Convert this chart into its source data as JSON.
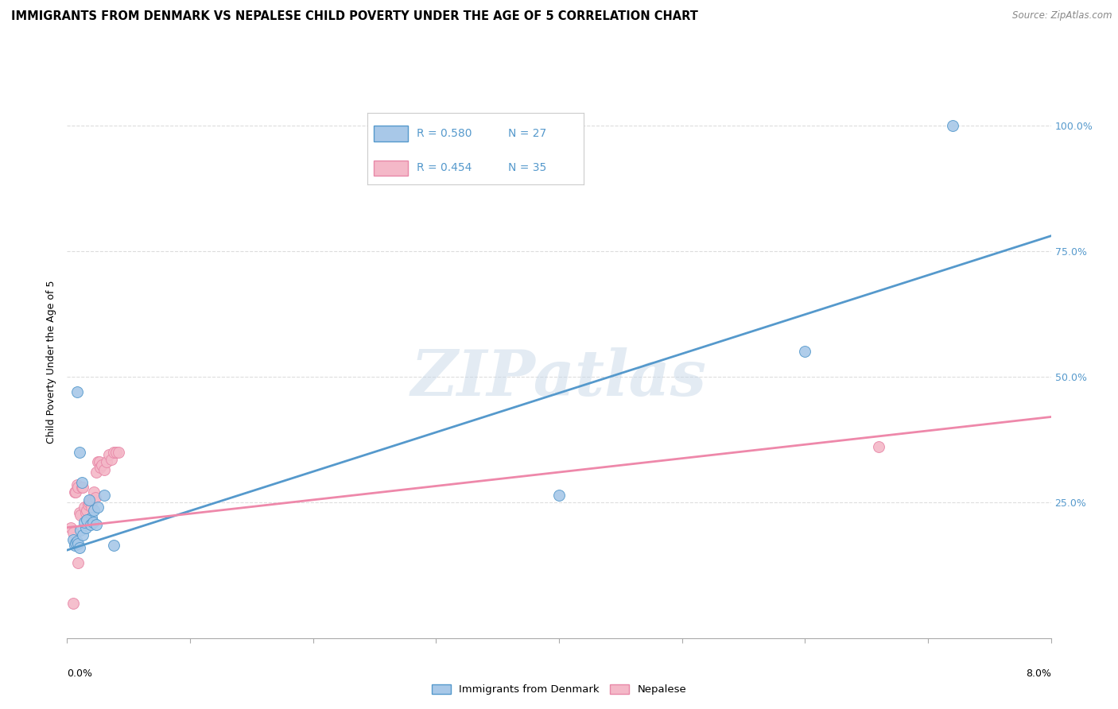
{
  "title": "IMMIGRANTS FROM DENMARK VS NEPALESE CHILD POVERTY UNDER THE AGE OF 5 CORRELATION CHART",
  "source": "Source: ZipAtlas.com",
  "ylabel": "Child Poverty Under the Age of 5",
  "legend_label1": "Immigrants from Denmark",
  "legend_label2": "Nepalese",
  "r1": "R = 0.580",
  "n1": "N = 27",
  "r2": "R = 0.454",
  "n2": "N = 35",
  "color_blue": "#a8c8e8",
  "color_pink": "#f4b8c8",
  "color_blue_edge": "#5599cc",
  "color_pink_edge": "#e888a8",
  "line_blue": "#5599cc",
  "line_pink": "#ee88aa",
  "title_fontsize": 10.5,
  "axis_label_fontsize": 9,
  "tick_fontsize": 9,
  "blue_scatter_x": [
    0.0005,
    0.0006,
    0.0007,
    0.0008,
    0.0009,
    0.001,
    0.0011,
    0.0013,
    0.0015,
    0.0017,
    0.002,
    0.0022,
    0.0025,
    0.0012,
    0.0018,
    0.0008,
    0.001,
    0.0014,
    0.0016,
    0.0019,
    0.0021,
    0.0024,
    0.003,
    0.0038,
    0.06,
    0.072,
    0.04
  ],
  "blue_scatter_y": [
    0.175,
    0.165,
    0.17,
    0.172,
    0.168,
    0.16,
    0.195,
    0.185,
    0.2,
    0.215,
    0.22,
    0.235,
    0.24,
    0.29,
    0.255,
    0.47,
    0.35,
    0.21,
    0.215,
    0.205,
    0.21,
    0.205,
    0.265,
    0.165,
    0.55,
    1.0,
    0.265
  ],
  "pink_scatter_x": [
    0.0003,
    0.0005,
    0.0006,
    0.0007,
    0.0008,
    0.0009,
    0.001,
    0.0011,
    0.0012,
    0.0013,
    0.0014,
    0.0015,
    0.0016,
    0.0017,
    0.0018,
    0.0019,
    0.002,
    0.0021,
    0.0022,
    0.0023,
    0.0024,
    0.0025,
    0.0026,
    0.0027,
    0.0028,
    0.003,
    0.0032,
    0.0034,
    0.0036,
    0.0038,
    0.004,
    0.0042,
    0.0009,
    0.066,
    0.0005
  ],
  "pink_scatter_y": [
    0.2,
    0.19,
    0.27,
    0.27,
    0.285,
    0.28,
    0.23,
    0.225,
    0.28,
    0.28,
    0.24,
    0.23,
    0.235,
    0.245,
    0.25,
    0.255,
    0.24,
    0.255,
    0.27,
    0.26,
    0.31,
    0.33,
    0.33,
    0.32,
    0.325,
    0.315,
    0.33,
    0.345,
    0.335,
    0.35,
    0.35,
    0.35,
    0.13,
    0.36,
    0.05
  ],
  "xlim": [
    0.0,
    0.08
  ],
  "ylim": [
    -0.02,
    1.08
  ],
  "watermark_text": "ZIPatlas",
  "blue_line_x": [
    0.0,
    0.08
  ],
  "blue_line_y": [
    0.155,
    0.78
  ],
  "pink_line_x": [
    0.0,
    0.08
  ],
  "pink_line_y": [
    0.2,
    0.42
  ],
  "ytick_positions": [
    0.25,
    0.5,
    0.75,
    1.0
  ],
  "ytick_labels": [
    "25.0%",
    "50.0%",
    "75.0%",
    "100.0%"
  ],
  "xtick_positions": [
    0.0,
    0.01,
    0.02,
    0.03,
    0.04,
    0.05,
    0.06,
    0.07,
    0.08
  ],
  "grid_color": "#dddddd",
  "background_color": "#ffffff"
}
